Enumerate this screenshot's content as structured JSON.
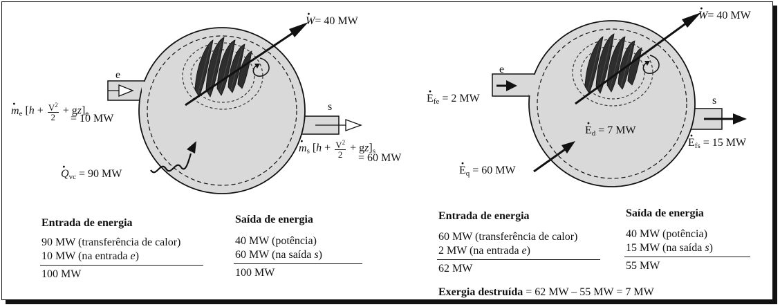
{
  "left": {
    "work_label": "= 40 MW",
    "inlet_letter": "e",
    "outlet_letter": "s",
    "inlet_flow_value": "= 10 MW",
    "outlet_flow_value": "= 60 MW",
    "heat_value": "= 90 MW",
    "table": {
      "in_header": "Entrada de energia",
      "in_row1": "90 MW (transferência de calor)",
      "in_row2_prefix": "10 MW (na entrada ",
      "in_row2_var": "e",
      "in_row2_suffix": ")",
      "in_total": "100 MW",
      "out_header": "Saída de energia",
      "out_row1": "40 MW (potência)",
      "out_row2_prefix": "60 MW (na saída ",
      "out_row2_var": "s",
      "out_row2_suffix": ")",
      "out_total": "100 MW"
    }
  },
  "right": {
    "work_label": "= 40 MW",
    "inlet_letter": "e",
    "outlet_letter": "s",
    "efe_value": "= 2 MW",
    "efs_value": "= 15 MW",
    "ed_value": "= 7 MW",
    "eq_value": "= 60 MW",
    "table": {
      "in_header": "Entrada de energia",
      "in_row1": "60 MW (transferência de calor)",
      "in_row2_prefix": "2 MW (na entrada ",
      "in_row2_var": "e",
      "in_row2_suffix": ")",
      "in_total": "62 MW",
      "out_header": "Saída de energia",
      "out_row1": "40 MW (potência)",
      "out_row2_prefix": "15 MW (na saída ",
      "out_row2_var": "s",
      "out_row2_suffix": ")",
      "out_total": "55 MW"
    },
    "exergy_label": "Exergia destruída",
    "exergy_equation": "= 62 MW – 55 MW = 7 MW"
  },
  "colors": {
    "vessel_fill": "#d9d9d9",
    "ink": "#111111",
    "blade": "#2a2a2a"
  }
}
